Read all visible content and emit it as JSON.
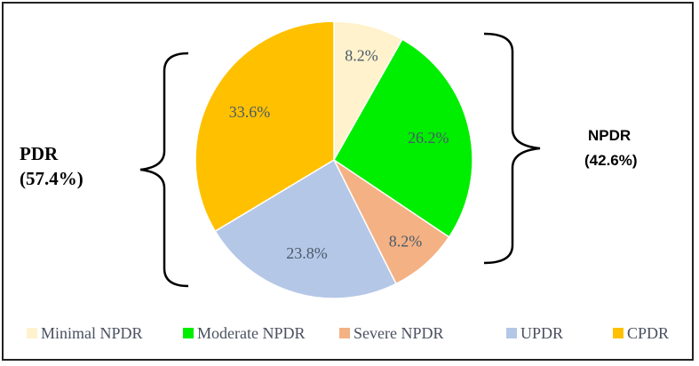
{
  "chart_data": {
    "type": "pie",
    "title": "",
    "start_angle_deg": 0,
    "direction": "clockwise",
    "slices": [
      {
        "label": "Minimal NPDR",
        "value": 8.2,
        "display": "8.2%",
        "color": "#FFF2CC"
      },
      {
        "label": "Moderate NPDR",
        "value": 26.2,
        "display": "26.2%",
        "color": "#00EE00"
      },
      {
        "label": "Severe NPDR",
        "value": 8.2,
        "display": "8.2%",
        "color": "#F4B183"
      },
      {
        "label": "UPDR",
        "value": 23.8,
        "display": "23.8%",
        "color": "#B4C7E7"
      },
      {
        "label": "CPDR",
        "value": 33.6,
        "display": "33.6%",
        "color": "#FFC000"
      }
    ],
    "groups": {
      "pdr": {
        "line1": "PDR",
        "line2": "(57.4%)"
      },
      "npdr": {
        "line1": "NPDR",
        "line2": "(42.6%)"
      }
    },
    "legend": {
      "position": "bottom"
    }
  }
}
